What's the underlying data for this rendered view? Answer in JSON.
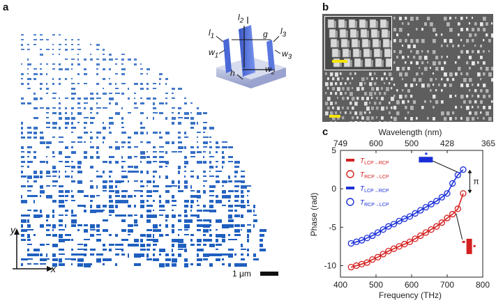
{
  "panels": {
    "a": "a",
    "b": "b",
    "c": "c"
  },
  "panel_a": {
    "axis_y": "y",
    "axis_x": "x",
    "scale_bar": "1 μm",
    "inset_labels": [
      "l",
      "l",
      "l",
      "g",
      "w",
      "w",
      "w",
      "h"
    ],
    "inset_subs": [
      "2",
      "1",
      "3",
      "",
      "1",
      "3",
      "2",
      ""
    ],
    "pixel_color": "#1f5fbf"
  },
  "panel_b": {
    "scale_bar_color": "#f5e600"
  },
  "chart_data": {
    "type": "scatter",
    "title": "",
    "xlabel": "Frequency (THz)",
    "ylabel": "Phase (rad)",
    "top_xlabel": "Wavelength (nm)",
    "xlim": [
      400,
      800
    ],
    "ylim": [
      -11.5,
      5
    ],
    "x_ticks": [
      400,
      500,
      600,
      700,
      800
    ],
    "y_ticks": [
      5,
      0,
      -5,
      -10
    ],
    "top_ticks": [
      {
        "label": "749",
        "freq": 400
      },
      {
        "label": "600",
        "freq": 500
      },
      {
        "label": "500",
        "freq": 600
      },
      {
        "label": "428",
        "freq": 700
      },
      {
        "label": "365",
        "freq": 822
      }
    ],
    "series": [
      {
        "name": "T",
        "sub": "LCP→RCP",
        "type": "line",
        "color": "#d42020",
        "x": [
          430,
          445,
          460,
          475,
          490,
          505,
          520,
          535,
          550,
          565,
          580,
          595,
          610,
          625,
          640,
          655,
          670,
          685,
          700,
          715,
          730,
          745
        ],
        "y": [
          -10.2,
          -10.0,
          -9.8,
          -9.6,
          -9.2,
          -8.9,
          -8.5,
          -8.1,
          -7.8,
          -7.5,
          -7.2,
          -6.9,
          -6.5,
          -6.1,
          -5.7,
          -5.3,
          -4.9,
          -4.4,
          -3.8,
          -3.3,
          -2.6,
          -0.6
        ]
      },
      {
        "name": "T",
        "sub": "RCP→LCP",
        "type": "circles",
        "color": "#d42020",
        "x": [
          430,
          445,
          460,
          475,
          490,
          505,
          520,
          535,
          550,
          565,
          580,
          595,
          610,
          625,
          640,
          655,
          670,
          685,
          700,
          715,
          730,
          745
        ],
        "y": [
          -10.2,
          -10.0,
          -9.8,
          -9.6,
          -9.2,
          -8.9,
          -8.5,
          -8.1,
          -7.8,
          -7.5,
          -7.2,
          -6.9,
          -6.5,
          -6.1,
          -5.7,
          -5.3,
          -4.9,
          -4.4,
          -3.8,
          -3.3,
          -2.6,
          -0.6
        ]
      },
      {
        "name": "T",
        "sub": "LCP→RCP",
        "type": "line",
        "color": "#1a2fd8",
        "x": [
          430,
          445,
          460,
          475,
          490,
          505,
          520,
          535,
          550,
          565,
          580,
          595,
          610,
          625,
          640,
          655,
          670,
          685,
          700,
          715,
          730,
          745
        ],
        "y": [
          -7.1,
          -6.9,
          -6.7,
          -6.4,
          -6.1,
          -5.7,
          -5.3,
          -4.9,
          -4.6,
          -4.2,
          -3.9,
          -3.6,
          -3.2,
          -2.8,
          -2.4,
          -2.0,
          -1.6,
          -1.1,
          -0.6,
          0.7,
          1.8,
          2.5
        ]
      },
      {
        "name": "T",
        "sub": "RCP→LCP",
        "type": "circles",
        "color": "#1a2fd8",
        "x": [
          430,
          445,
          460,
          475,
          490,
          505,
          520,
          535,
          550,
          565,
          580,
          595,
          610,
          625,
          640,
          655,
          670,
          685,
          700,
          715,
          730,
          745
        ],
        "y": [
          -7.1,
          -6.9,
          -6.7,
          -6.4,
          -6.1,
          -5.7,
          -5.3,
          -4.9,
          -4.6,
          -4.2,
          -3.9,
          -3.6,
          -3.2,
          -2.8,
          -2.4,
          -2.0,
          -1.6,
          -1.1,
          -0.6,
          0.7,
          1.8,
          2.5
        ]
      }
    ],
    "annotation": "π"
  }
}
